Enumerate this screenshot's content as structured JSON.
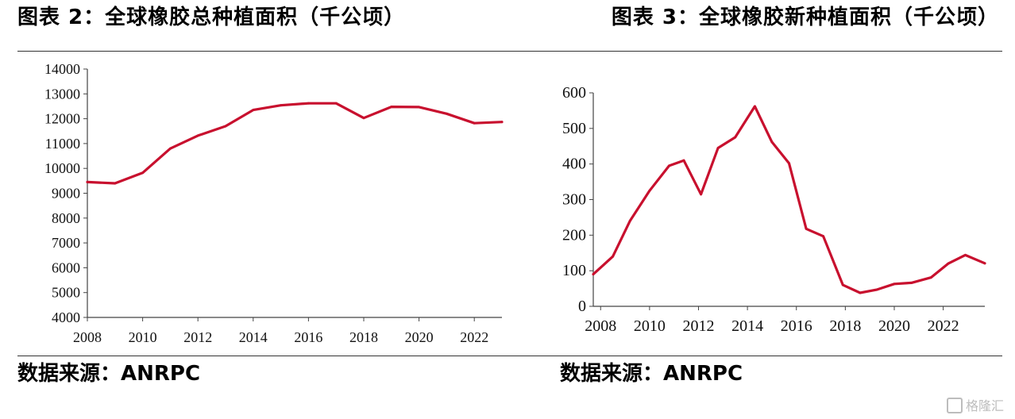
{
  "titles": {
    "left": "图表 2：全球橡胶总种植面积（千公顷）",
    "right": "图表 3：全球橡胶新种植面积（千公顷）"
  },
  "sources": {
    "left": "数据来源：ANRPC",
    "right": "数据来源：ANRPC"
  },
  "watermark": "格隆汇",
  "colors": {
    "line": "#c8102e",
    "axis": "#444444"
  },
  "chart_data": [
    {
      "type": "line",
      "x": [
        2008,
        2009,
        2010,
        2011,
        2012,
        2013,
        2014,
        2015,
        2016,
        2017,
        2018,
        2019,
        2020,
        2021,
        2022,
        2023
      ],
      "series": [
        {
          "values": [
            9450,
            9400,
            9820,
            10800,
            11320,
            11700,
            12350,
            12540,
            12620,
            12620,
            12030,
            12480,
            12470,
            12200,
            11820,
            11870
          ]
        }
      ],
      "xticks": [
        "2008",
        "2010",
        "2012",
        "2014",
        "2016",
        "2018",
        "2020",
        "2022"
      ],
      "yticks": [
        "4000",
        "5000",
        "6000",
        "7000",
        "8000",
        "9000",
        "10000",
        "11000",
        "12000",
        "13000",
        "14000"
      ],
      "xlim": [
        2008,
        2023
      ],
      "ylim": [
        4000,
        14000
      ],
      "grid": false
    },
    {
      "type": "line",
      "x": [
        2007.7,
        2008.5,
        2009.2,
        2010,
        2010.8,
        2011.4,
        2012.1,
        2012.8,
        2013.5,
        2014.3,
        2015,
        2015.7,
        2016.4,
        2017.1,
        2017.9,
        2018.6,
        2019.3,
        2020,
        2020.7,
        2021.5,
        2022.2,
        2022.9,
        2023.7
      ],
      "series": [
        {
          "values": [
            90,
            140,
            240,
            325,
            395,
            410,
            315,
            445,
            475,
            562,
            462,
            402,
            218,
            197,
            60,
            38,
            47,
            63,
            66,
            81,
            120,
            144,
            121
          ]
        }
      ],
      "xticks": [
        "2008",
        "2010",
        "2012",
        "2014",
        "2016",
        "2018",
        "2020",
        "2022"
      ],
      "yticks": [
        "0",
        "100",
        "200",
        "300",
        "400",
        "500",
        "600"
      ],
      "xlim": [
        2007.7,
        2023.7
      ],
      "ylim": [
        0,
        600
      ],
      "grid": false
    }
  ]
}
